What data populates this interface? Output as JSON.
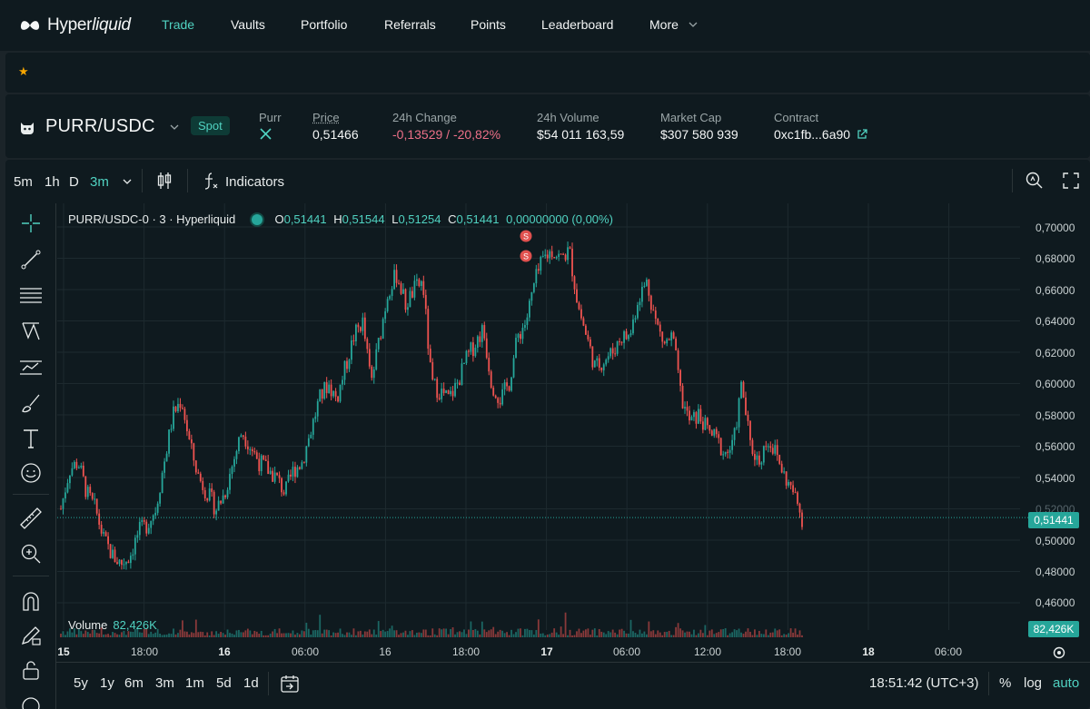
{
  "nav": {
    "brand_a": "Hyper",
    "brand_b": "liquid",
    "items": [
      "Trade",
      "Vaults",
      "Portfolio",
      "Referrals",
      "Points",
      "Leaderboard",
      "More"
    ]
  },
  "market": {
    "pair": "PURR/USDC",
    "badge": "Spot",
    "token_label": "Purr",
    "price_label": "Price",
    "price": "0,51466",
    "change_label": "24h Change",
    "change": "-0,13529 / -20,82%",
    "volume_label": "24h Volume",
    "volume": "$54 011 163,59",
    "mcap_label": "Market Cap",
    "mcap": "$307 580 939",
    "contract_label": "Contract",
    "contract": "0xc1fb...6a90"
  },
  "toolbar": {
    "intervals": [
      "5m",
      "1h",
      "D",
      "3m"
    ],
    "indicators": "Indicators"
  },
  "legend": {
    "symbol": "PURR/USDC-0 · 3 · Hyperliquid",
    "o_label": "O",
    "o": "0,51441",
    "h_label": "H",
    "h": "0,51544",
    "l_label": "L",
    "l": "0,51254",
    "c_label": "C",
    "c": "0,51441",
    "chg": "0,00000000 (0,00%)"
  },
  "volume": {
    "label": "Volume",
    "value": "82,426K"
  },
  "last_price_tag": "0,51441",
  "volume_tag": "82,426K",
  "bottom": {
    "ranges": [
      "5y",
      "1y",
      "6m",
      "3m",
      "1m",
      "5d",
      "1d"
    ],
    "clock": "18:51:42 (UTC+3)",
    "pct": "%",
    "log": "log",
    "auto": "auto"
  },
  "colors": {
    "up": "#26a69a",
    "down": "#ef5350",
    "accent": "#50d2c1"
  },
  "chart_data": {
    "type": "candlestick",
    "y_ticks": [
      "0,70000",
      "0,68000",
      "0,66000",
      "0,64000",
      "0,62000",
      "0,60000",
      "0,58000",
      "0,56000",
      "0,54000",
      "0,52000",
      "0,50000",
      "0,48000",
      "0,46000"
    ],
    "x_ticks": [
      "15",
      "18:00",
      "16",
      "06:00",
      "16",
      "18:00",
      "17",
      "06:00",
      "12:00",
      "18:00",
      "18",
      "06:00"
    ],
    "ylim": [
      0.46,
      0.7
    ],
    "close_path": [
      0.52,
      0.545,
      0.55,
      0.53,
      0.52,
      0.5,
      0.49,
      0.485,
      0.49,
      0.505,
      0.51,
      0.52,
      0.55,
      0.58,
      0.59,
      0.56,
      0.54,
      0.53,
      0.52,
      0.53,
      0.55,
      0.57,
      0.56,
      0.55,
      0.545,
      0.54,
      0.53,
      0.545,
      0.55,
      0.57,
      0.59,
      0.6,
      0.59,
      0.61,
      0.63,
      0.64,
      0.6,
      0.63,
      0.66,
      0.67,
      0.65,
      0.66,
      0.665,
      0.6,
      0.595,
      0.59,
      0.6,
      0.615,
      0.625,
      0.635,
      0.6,
      0.59,
      0.6,
      0.63,
      0.64,
      0.665,
      0.68,
      0.685,
      0.68,
      0.685,
      0.65,
      0.63,
      0.61,
      0.615,
      0.62,
      0.63,
      0.63,
      0.655,
      0.665,
      0.64,
      0.625,
      0.63,
      0.59,
      0.575,
      0.58,
      0.57,
      0.565,
      0.555,
      0.56,
      0.6,
      0.56,
      0.55,
      0.565,
      0.555,
      0.54,
      0.53,
      0.514
    ]
  }
}
